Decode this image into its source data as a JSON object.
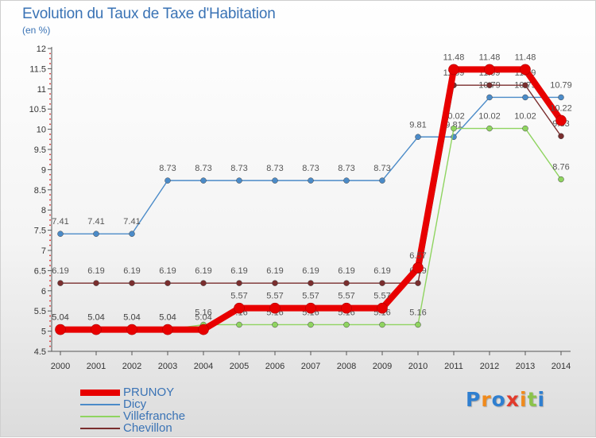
{
  "title": "Evolution du Taux de Taxe d'Habitation",
  "subtitle": "(en %)",
  "brand": {
    "letters": [
      {
        "ch": "P",
        "color": "#2f7fd0"
      },
      {
        "ch": "r",
        "color": "#f08a1c"
      },
      {
        "ch": "o",
        "color": "#2f7fd0"
      },
      {
        "ch": "x",
        "color": "#e23a2b"
      },
      {
        "ch": "i",
        "color": "#f08a1c"
      },
      {
        "ch": "t",
        "color": "#8bc34a"
      },
      {
        "ch": "i",
        "color": "#2f7fd0"
      }
    ]
  },
  "chart_data": {
    "type": "line",
    "x": [
      "2000",
      "2001",
      "2002",
      "2003",
      "2004",
      "2005",
      "2006",
      "2007",
      "2008",
      "2009",
      "2010",
      "2011",
      "2012",
      "2013",
      "2014"
    ],
    "ylim": [
      4.5,
      12
    ],
    "yticks": [
      "4.5",
      "5",
      "5.5",
      "6",
      "6.5",
      "7",
      "7.5",
      "8",
      "8.5",
      "9",
      "9.5",
      "10",
      "10.5",
      "11",
      "11.5",
      "12"
    ],
    "grid": false,
    "legend_position": "bottom-left",
    "series": [
      {
        "name": "Dicy",
        "color": "#4b8bc8",
        "values": [
          7.41,
          7.41,
          7.41,
          8.73,
          8.73,
          8.73,
          8.73,
          8.73,
          8.73,
          8.73,
          9.81,
          9.81,
          10.79,
          10.79,
          10.79
        ],
        "labels": [
          "7.41",
          "7.41",
          "7.41",
          "8.73",
          "8.73",
          "8.73",
          "8.73",
          "8.73",
          "8.73",
          "8.73",
          "9.81",
          "9.81",
          "10.79",
          "10.79",
          "10.79"
        ]
      },
      {
        "name": "Villefranche",
        "color": "#8fd460",
        "values": [
          5.04,
          5.04,
          5.04,
          5.04,
          5.16,
          5.16,
          5.16,
          5.16,
          5.16,
          5.16,
          5.16,
          10.02,
          10.02,
          10.02,
          8.76
        ],
        "labels": [
          "5.04",
          "5.04",
          "5.04",
          "5.04",
          "5.16",
          "5.16",
          "5.16",
          "5.16",
          "5.16",
          "5.16",
          "5.16",
          "10.02",
          "10.02",
          "10.02",
          "8.76"
        ]
      },
      {
        "name": "Chevillon",
        "color": "#7a2e2e",
        "values": [
          6.19,
          6.19,
          6.19,
          6.19,
          6.19,
          6.19,
          6.19,
          6.19,
          6.19,
          6.19,
          6.19,
          11.09,
          11.09,
          11.09,
          9.83
        ],
        "labels": [
          "6.19",
          "6.19",
          "6.19",
          "6.19",
          "6.19",
          "6.19",
          "6.19",
          "6.19",
          "6.19",
          "6.19",
          "6.19",
          "11.09",
          "11.09",
          "11.09",
          "9.83"
        ]
      },
      {
        "name": "PRUNOY",
        "color": "#e80000",
        "values": [
          5.04,
          5.04,
          5.04,
          5.04,
          5.04,
          5.57,
          5.57,
          5.57,
          5.57,
          5.57,
          6.57,
          11.48,
          11.48,
          11.48,
          10.22
        ],
        "labels": [
          "5.04",
          "5.04",
          "5.04",
          "5.04",
          "5.04",
          "5.57",
          "5.57",
          "5.57",
          "5.57",
          "5.57",
          "6.57",
          "11.48",
          "11.48",
          "11.48",
          "10.22"
        ]
      }
    ],
    "legend": [
      {
        "name": "PRUNOY",
        "color": "#e80000"
      },
      {
        "name": "Dicy",
        "color": "#4b8bc8"
      },
      {
        "name": "Villefranche",
        "color": "#8fd460"
      },
      {
        "name": "Chevillon",
        "color": "#7a2e2e"
      }
    ]
  }
}
